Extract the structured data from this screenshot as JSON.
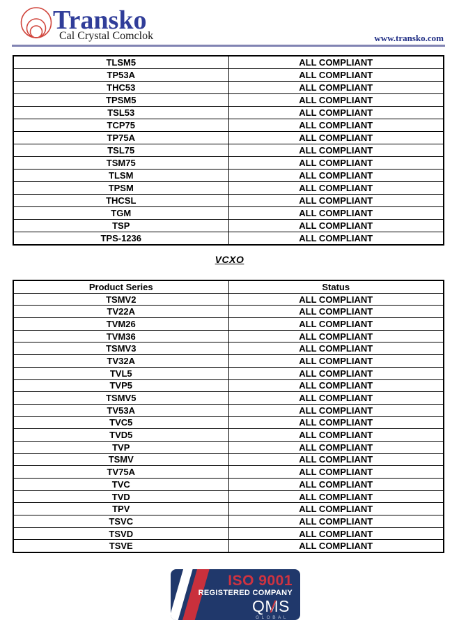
{
  "header": {
    "brand": "Transko",
    "tagline": "Cal Crystal Comclok",
    "website": "www.transko.com"
  },
  "crystal_table": {
    "rows": [
      [
        "TLSM5",
        "ALL COMPLIANT"
      ],
      [
        "TP53A",
        "ALL COMPLIANT"
      ],
      [
        "THC53",
        "ALL COMPLIANT"
      ],
      [
        "TPSM5",
        "ALL COMPLIANT"
      ],
      [
        "TSL53",
        "ALL COMPLIANT"
      ],
      [
        "TCP75",
        "ALL COMPLIANT"
      ],
      [
        "TP75A",
        "ALL COMPLIANT"
      ],
      [
        "TSL75",
        "ALL COMPLIANT"
      ],
      [
        "TSM75",
        "ALL COMPLIANT"
      ],
      [
        "TLSM",
        "ALL COMPLIANT"
      ],
      [
        "TPSM",
        "ALL COMPLIANT"
      ],
      [
        "THCSL",
        "ALL COMPLIANT"
      ],
      [
        "TGM",
        "ALL COMPLIANT"
      ],
      [
        "TSP",
        "ALL COMPLIANT"
      ],
      [
        "TPS-1236",
        "ALL COMPLIANT"
      ]
    ]
  },
  "section": {
    "heading": "VCXO"
  },
  "vcxo_table": {
    "headers": [
      "Product Series",
      "Status"
    ],
    "rows": [
      [
        "TSMV2",
        "ALL COMPLIANT"
      ],
      [
        "TV22A",
        "ALL COMPLIANT"
      ],
      [
        "TVM26",
        "ALL COMPLIANT"
      ],
      [
        "TVM36",
        "ALL COMPLIANT"
      ],
      [
        "TSMV3",
        "ALL COMPLIANT"
      ],
      [
        "TV32A",
        "ALL COMPLIANT"
      ],
      [
        "TVL5",
        "ALL COMPLIANT"
      ],
      [
        "TVP5",
        "ALL COMPLIANT"
      ],
      [
        "TSMV5",
        "ALL COMPLIANT"
      ],
      [
        "TV53A",
        "ALL COMPLIANT"
      ],
      [
        "TVC5",
        "ALL COMPLIANT"
      ],
      [
        "TVD5",
        "ALL COMPLIANT"
      ],
      [
        "TVP",
        "ALL COMPLIANT"
      ],
      [
        "TSMV",
        "ALL COMPLIANT"
      ],
      [
        "TV75A",
        "ALL COMPLIANT"
      ],
      [
        "TVC",
        "ALL COMPLIANT"
      ],
      [
        "TVD",
        "ALL COMPLIANT"
      ],
      [
        "TPV",
        "ALL COMPLIANT"
      ],
      [
        "TSVC",
        "ALL COMPLIANT"
      ],
      [
        "TSVD",
        "ALL COMPLIANT"
      ],
      [
        "TSVE",
        "ALL COMPLIANT"
      ]
    ]
  },
  "badge": {
    "title": "ISO 9001",
    "subtitle": "REGISTERED COMPANY",
    "logo_text": "QMS",
    "logo_subtext": "GLOBAL"
  },
  "colors": {
    "brand_blue": "#303d99",
    "logo_circle_red": "#d1473e",
    "header_rule": "#8083b2",
    "website_navy": "#202e85",
    "badge_navy": "#20386b",
    "badge_red": "#c9303c",
    "badge_title_red": "#cf3340"
  }
}
